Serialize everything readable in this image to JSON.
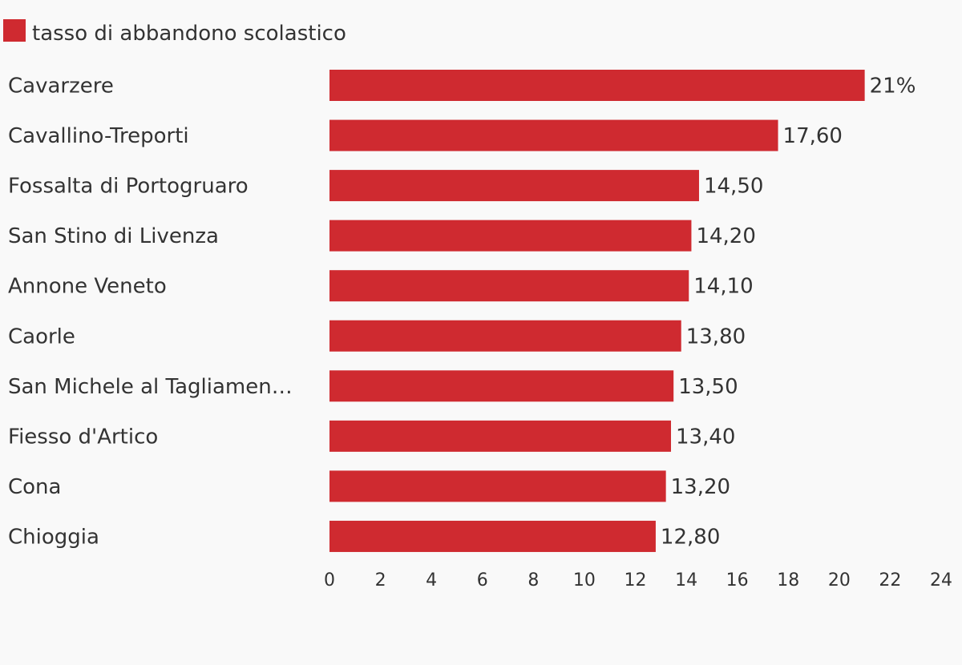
{
  "chart_data": {
    "type": "bar",
    "orientation": "horizontal",
    "legend": {
      "label": "tasso di abbandono scolastico",
      "color": "#cf2a30",
      "placement": "top-left"
    },
    "categories": [
      "Cavarzere",
      "Cavallino-Treporti",
      "Fossalta di Portogruaro",
      "San Stino di Livenza",
      "Annone Veneto",
      "Caorle",
      "San Michele al Tagliamen…",
      "Fiesso d'Artico",
      "Cona",
      "Chioggia"
    ],
    "series": [
      {
        "name": "tasso di abbandono scolastico",
        "values": [
          21,
          17.6,
          14.5,
          14.2,
          14.1,
          13.8,
          13.5,
          13.4,
          13.2,
          12.8
        ],
        "value_labels": [
          "21%",
          "17,60",
          "14,50",
          "14,20",
          "14,10",
          "13,80",
          "13,50",
          "13,40",
          "13,20",
          "12,80"
        ]
      }
    ],
    "xlim": [
      0,
      24
    ],
    "xticks": [
      0,
      2,
      4,
      6,
      8,
      10,
      12,
      14,
      16,
      18,
      20,
      22,
      24
    ],
    "xtick_labels": [
      "0",
      "2",
      "4",
      "6",
      "8",
      "10",
      "12",
      "14",
      "16",
      "18",
      "20",
      "22",
      "24"
    ],
    "grid": false,
    "bar_color": "#cf2a30"
  }
}
